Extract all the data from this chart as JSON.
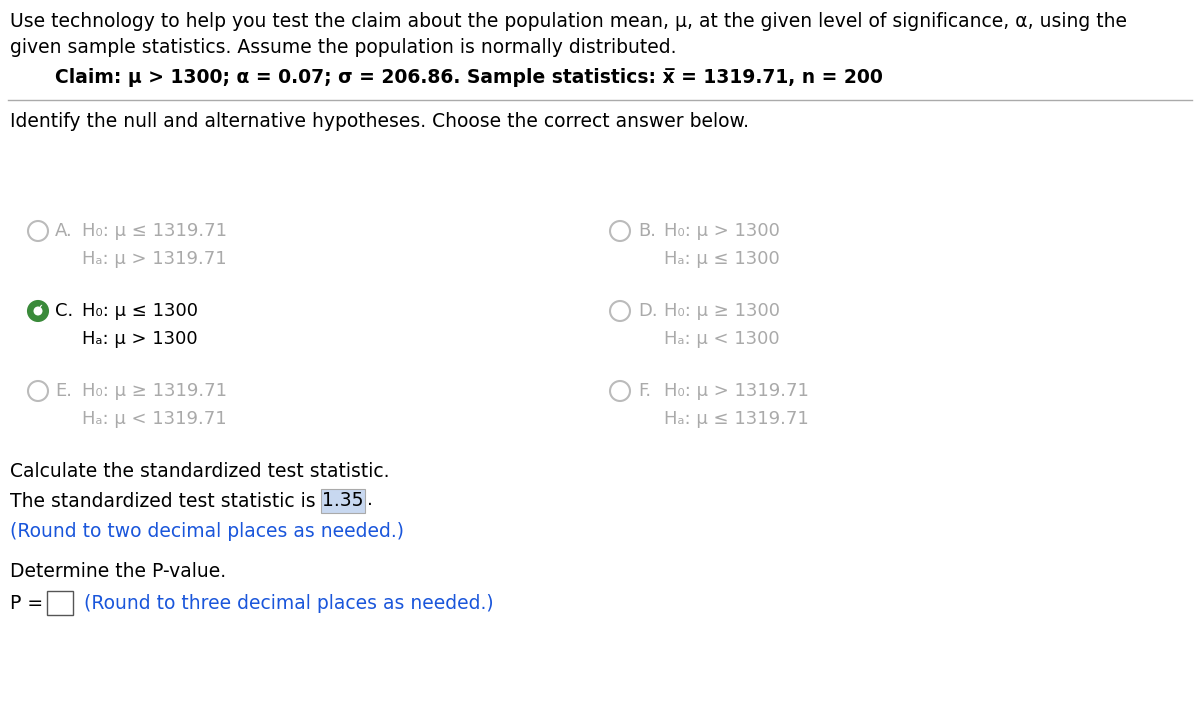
{
  "bg_color": "#ffffff",
  "text_color": "#000000",
  "blue_color": "#1a56db",
  "highlight_bg": "#c8d8f0",
  "gray_color": "#888888",
  "green_color": "#2e7d32",
  "header_line1": "Use technology to help you test the claim about the population mean, μ, at the given level of significance, α, using the",
  "header_line2": "given sample statistics. Assume the population is normally distributed.",
  "claim_line": "Claim: μ > 1300; α = 0.07; σ = 206.86. Sample statistics: x̅ = 1319.71, n = 200",
  "identify_text": "Identify the null and alternative hypotheses. Choose the correct answer below.",
  "options": {
    "A": {
      "h0": "H₀: μ ≤ 1319.71",
      "ha": "Hₐ: μ > 1319.71",
      "selected": false
    },
    "B": {
      "h0": "H₀: μ > 1300",
      "ha": "Hₐ: μ ≤ 1300",
      "selected": false
    },
    "C": {
      "h0": "H₀: μ ≤ 1300",
      "ha": "Hₐ: μ > 1300",
      "selected": true
    },
    "D": {
      "h0": "H₀: μ ≥ 1300",
      "ha": "Hₐ: μ < 1300",
      "selected": false
    },
    "E": {
      "h0": "H₀: μ ≥ 1319.71",
      "ha": "Hₐ: μ < 1319.71",
      "selected": false
    },
    "F": {
      "h0": "H₀: μ > 1319.71",
      "ha": "Hₐ: μ ≤ 1319.71",
      "selected": false
    }
  },
  "calc_text": "Calculate the standardized test statistic.",
  "stat_text_before": "The standardized test statistic is ",
  "stat_value": "1.35",
  "stat_text_after": ".",
  "round_two": "(Round to two decimal places as needed.)",
  "determine_text": "Determine the P-value.",
  "pvalue_prefix": "P =",
  "round_three": "(Round to three decimal places as needed.)"
}
